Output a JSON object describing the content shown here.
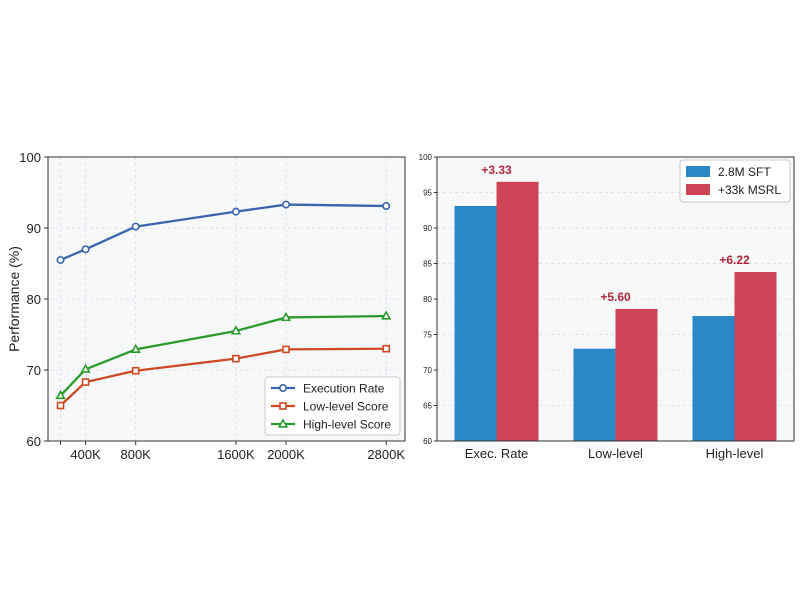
{
  "chart_data": [
    {
      "type": "line",
      "title": "",
      "xlabel": "",
      "ylabel": "Performance (%)",
      "x": [
        200,
        400,
        800,
        1600,
        2000,
        2800
      ],
      "xticks": [
        400,
        800,
        1600,
        2000,
        2800
      ],
      "xtick_labels": [
        "400K",
        "800K",
        "1600K",
        "2000K",
        "2800K"
      ],
      "xlim": [
        100,
        2950
      ],
      "ylim": [
        60,
        100
      ],
      "yticks": [
        60,
        70,
        80,
        90,
        100
      ],
      "grid": true,
      "legend_position": "lower-right",
      "series": [
        {
          "name": "Execution Rate",
          "color": "#3a64ae",
          "marker": "circle",
          "values": [
            85.5,
            87.0,
            90.2,
            92.3,
            93.3,
            93.1
          ]
        },
        {
          "name": "Low-level Score",
          "color": "#cf4a24",
          "marker": "square",
          "values": [
            65.0,
            68.3,
            69.9,
            71.6,
            72.9,
            73.0
          ]
        },
        {
          "name": "High-level Score",
          "color": "#2b9a2b",
          "marker": "triangle",
          "values": [
            66.4,
            70.1,
            72.9,
            75.5,
            77.4,
            77.6
          ]
        }
      ]
    },
    {
      "type": "bar",
      "title": "",
      "xlabel": "",
      "ylabel": "",
      "categories": [
        "Exec. Rate",
        "Low-level",
        "High-level"
      ],
      "ylim": [
        60,
        100
      ],
      "yticks": [
        60,
        65,
        70,
        75,
        80,
        85,
        90,
        95,
        100
      ],
      "grid": true,
      "legend_position": "top-right",
      "series": [
        {
          "name": "2.8M SFT",
          "color": "#2a88c6",
          "values": [
            93.1,
            73.0,
            77.6
          ]
        },
        {
          "name": "+33k MSRL",
          "color": "#cc4456",
          "values": [
            96.5,
            78.6,
            83.8
          ]
        }
      ],
      "annotations": [
        "+3.33",
        "+5.60",
        "+6.22"
      ],
      "annotation_color": "#b0283c"
    }
  ]
}
